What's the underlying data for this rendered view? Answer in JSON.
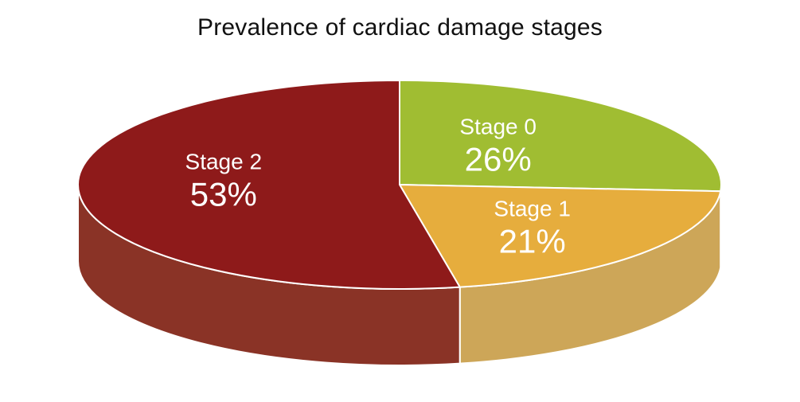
{
  "chart_data": {
    "type": "pie",
    "title": "Prevalence of cardiac damage stages",
    "slices": [
      {
        "label": "Stage 0",
        "value": 26,
        "display": "26%",
        "color": "#a0bd32",
        "side_color": "#8a9e35"
      },
      {
        "label": "Stage 1",
        "value": 21,
        "display": "21%",
        "color": "#e6ad3d",
        "side_color": "#cda658"
      },
      {
        "label": "Stage 2",
        "value": 53,
        "display": "53%",
        "color": "#8e1a1a",
        "side_color": "#8a3326"
      }
    ]
  }
}
